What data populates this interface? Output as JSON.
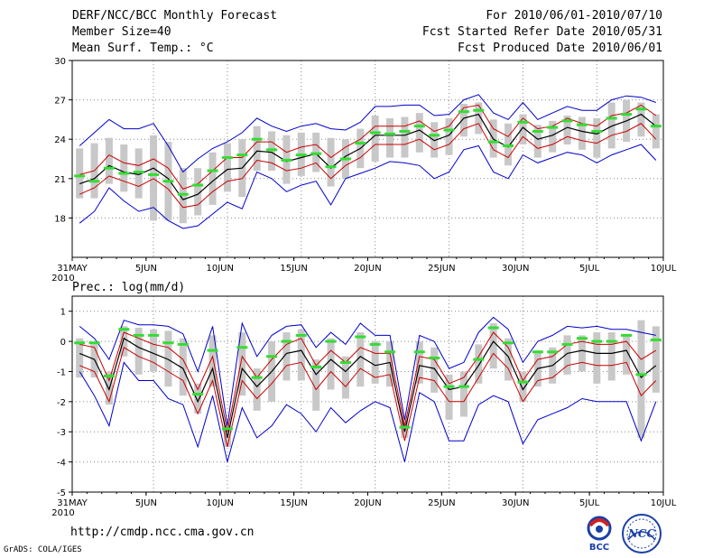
{
  "header": {
    "title": "DERF/NCC/BCC Monthly Forecast",
    "member_size": "Member Size=40",
    "variable": "Mean Surf. Temp.: °C",
    "period": "For 2010/06/01-2010/07/10",
    "started": "Fcst Started Refer Date 2010/05/31",
    "produced": "Fcst Produced Date 2010/06/01"
  },
  "panel2_label": "Prec.: log(mm/d)",
  "footer": {
    "url": "http://cmdp.ncc.cma.gov.cn",
    "credit": "GrADS: COLA/IGES"
  },
  "logos": {
    "bcc": "BCC",
    "ncc": "NCC"
  },
  "colors": {
    "envelope": "#0000cc",
    "spread": "#cc0000",
    "mean": "#000000",
    "box": "#c8c8c8",
    "obs": "#33dd33"
  },
  "chart_data": [
    {
      "type": "line",
      "title": "Mean Surf. Temp.: °C",
      "x_tick_labels": [
        "31MAY",
        "5JUN",
        "10JUN",
        "15JUN",
        "20JUN",
        "25JUN",
        "30JUN",
        "5JUL",
        "10JUL"
      ],
      "x_year_label": "2010",
      "ylim": [
        15,
        30
      ],
      "yticks": [
        18,
        21,
        24,
        27,
        30
      ],
      "days": [
        1,
        2,
        3,
        4,
        5,
        6,
        7,
        8,
        9,
        10,
        11,
        12,
        13,
        14,
        15,
        16,
        17,
        18,
        19,
        20,
        21,
        22,
        23,
        24,
        25,
        26,
        27,
        28,
        29,
        30,
        31,
        32,
        33,
        34,
        35,
        36,
        37,
        38,
        39,
        40
      ],
      "series": [
        {
          "name": "max",
          "values": [
            23.5,
            24.5,
            25.5,
            24.8,
            24.8,
            25.2,
            23.5,
            21.5,
            22.5,
            23.3,
            23.8,
            24.5,
            25.6,
            25.0,
            24.6,
            25.0,
            25.2,
            24.8,
            24.7,
            25.3,
            26.5,
            26.5,
            26.6,
            26.6,
            25.8,
            25.9,
            27.0,
            27.4,
            26.0,
            25.5,
            26.8,
            25.5,
            26.0,
            26.5,
            26.2,
            26.2,
            27.0,
            27.3,
            27.2,
            26.8
          ]
        },
        {
          "name": "spread_upper",
          "values": [
            21.3,
            21.6,
            22.8,
            22.2,
            22.0,
            22.5,
            21.8,
            20.2,
            20.6,
            21.6,
            22.6,
            22.6,
            23.8,
            23.8,
            23.0,
            23.4,
            23.6,
            22.6,
            23.4,
            24.0,
            25.0,
            25.0,
            25.0,
            25.4,
            24.6,
            25.0,
            26.4,
            26.6,
            24.8,
            24.2,
            25.6,
            24.8,
            25.0,
            25.6,
            25.2,
            25.0,
            25.8,
            26.0,
            26.6,
            25.8
          ]
        },
        {
          "name": "mean",
          "values": [
            20.6,
            21.0,
            22.0,
            21.5,
            21.3,
            21.8,
            21.0,
            19.4,
            19.8,
            20.8,
            21.7,
            21.8,
            23.1,
            23.0,
            22.3,
            22.6,
            22.9,
            21.8,
            22.7,
            23.3,
            24.3,
            24.3,
            24.3,
            24.7,
            23.9,
            24.3,
            25.6,
            25.9,
            24.0,
            23.4,
            24.9,
            24.0,
            24.3,
            24.9,
            24.6,
            24.4,
            25.0,
            25.4,
            25.9,
            25.0
          ]
        },
        {
          "name": "spread_lower",
          "values": [
            19.8,
            20.3,
            21.2,
            20.8,
            20.4,
            21.0,
            20.2,
            18.8,
            19.0,
            20.0,
            20.8,
            21.0,
            22.4,
            22.2,
            21.6,
            21.8,
            22.2,
            21.0,
            22.0,
            22.6,
            23.6,
            23.6,
            23.6,
            24.0,
            23.2,
            23.6,
            24.8,
            25.2,
            23.2,
            22.6,
            24.2,
            23.3,
            23.6,
            24.2,
            23.9,
            23.7,
            24.3,
            24.6,
            25.2,
            24.0
          ]
        },
        {
          "name": "min",
          "values": [
            17.6,
            18.5,
            20.3,
            19.3,
            18.5,
            18.8,
            17.8,
            17.2,
            17.4,
            18.3,
            19.2,
            18.7,
            21.5,
            21.0,
            20.0,
            20.5,
            20.8,
            19.0,
            21.0,
            21.4,
            21.8,
            22.3,
            22.2,
            22.0,
            21.0,
            21.5,
            23.2,
            23.5,
            21.5,
            21.0,
            22.8,
            22.2,
            22.6,
            23.0,
            22.8,
            22.2,
            22.8,
            23.2,
            23.6,
            22.4
          ]
        },
        {
          "name": "box_top",
          "values": [
            23.3,
            23.7,
            24.1,
            23.6,
            23.3,
            24.3,
            23.8,
            21.8,
            21.8,
            23.0,
            23.7,
            24.0,
            25.0,
            24.6,
            24.3,
            24.5,
            24.5,
            24.1,
            24.0,
            24.8,
            25.8,
            25.6,
            25.7,
            26.0,
            25.3,
            25.6,
            26.7,
            26.8,
            25.5,
            25.2,
            25.9,
            25.1,
            25.4,
            25.8,
            25.7,
            25.6,
            26.8,
            27.0,
            26.8,
            25.9
          ]
        },
        {
          "name": "box_bottom",
          "values": [
            19.5,
            19.5,
            20.6,
            20.0,
            19.5,
            17.8,
            17.8,
            17.6,
            18.2,
            19.0,
            20.0,
            19.6,
            21.6,
            21.6,
            20.6,
            21.2,
            21.5,
            20.4,
            21.0,
            21.8,
            22.3,
            22.6,
            22.6,
            23.0,
            22.6,
            22.8,
            24.2,
            24.4,
            22.6,
            22.0,
            23.6,
            22.6,
            23.0,
            23.6,
            23.2,
            22.6,
            23.3,
            23.8,
            24.2,
            23.3
          ]
        },
        {
          "name": "observed",
          "values": [
            21.2,
            20.8,
            21.8,
            21.4,
            21.5,
            21.3,
            20.8,
            19.8,
            20.5,
            21.6,
            22.6,
            22.8,
            24.0,
            23.2,
            22.4,
            22.8,
            22.9,
            21.9,
            22.5,
            23.7,
            24.5,
            24.4,
            24.6,
            25.0,
            24.3,
            24.7,
            26.1,
            26.2,
            23.8,
            23.5,
            25.3,
            24.6,
            24.9,
            25.4,
            25.1,
            24.6,
            25.6,
            25.9,
            26.3,
            25.0
          ]
        }
      ]
    },
    {
      "type": "line",
      "title": "Prec.: log(mm/d)",
      "x_tick_labels": [
        "31MAY",
        "5JUN",
        "10JUN",
        "15JUN",
        "20JUN",
        "25JUN",
        "30JUN",
        "5JUL",
        "10JUL"
      ],
      "x_year_label": "2010",
      "ylim": [
        -5,
        1.5
      ],
      "yticks": [
        -5,
        -4,
        -3,
        -2,
        -1,
        0,
        1
      ],
      "days": [
        1,
        2,
        3,
        4,
        5,
        6,
        7,
        8,
        9,
        10,
        11,
        12,
        13,
        14,
        15,
        16,
        17,
        18,
        19,
        20,
        21,
        22,
        23,
        24,
        25,
        26,
        27,
        28,
        29,
        30,
        31,
        32,
        33,
        34,
        35,
        36,
        37,
        38,
        39,
        40
      ],
      "series": [
        {
          "name": "max",
          "values": [
            0.5,
            0.1,
            -0.6,
            0.7,
            0.55,
            0.55,
            0.5,
            0.25,
            -1.0,
            0.5,
            -2.8,
            0.6,
            -0.5,
            0.2,
            0.5,
            0.55,
            -0.2,
            0.3,
            -0.1,
            0.6,
            0.2,
            0.2,
            -2.6,
            0.2,
            0.0,
            -0.9,
            -0.7,
            0.3,
            0.8,
            0.4,
            -0.7,
            0.0,
            0.2,
            0.5,
            0.45,
            0.5,
            0.4,
            0.4,
            0.3,
            0.2
          ]
        },
        {
          "name": "spread_upper",
          "values": [
            -0.1,
            -0.2,
            -1.3,
            0.3,
            0.1,
            -0.1,
            -0.2,
            -0.6,
            -1.6,
            -0.5,
            -3.0,
            -0.5,
            -1.2,
            -0.6,
            -0.1,
            0.1,
            -0.8,
            -0.3,
            -0.7,
            -0.2,
            -0.4,
            -0.4,
            -2.8,
            -0.5,
            -0.6,
            -1.4,
            -1.2,
            -0.5,
            0.3,
            -0.2,
            -1.3,
            -0.6,
            -0.5,
            -0.1,
            0.0,
            -0.1,
            -0.1,
            0.0,
            -0.6,
            -0.3
          ]
        },
        {
          "name": "mean",
          "values": [
            -0.4,
            -0.6,
            -1.6,
            0.1,
            -0.2,
            -0.4,
            -0.6,
            -0.9,
            -2.0,
            -0.9,
            -3.2,
            -0.9,
            -1.5,
            -1.0,
            -0.4,
            -0.3,
            -1.1,
            -0.6,
            -1.0,
            -0.5,
            -0.8,
            -0.7,
            -3.0,
            -0.8,
            -0.9,
            -1.6,
            -1.5,
            -0.8,
            0.0,
            -0.5,
            -1.6,
            -0.9,
            -0.8,
            -0.4,
            -0.3,
            -0.4,
            -0.4,
            -0.3,
            -1.2,
            -0.8
          ]
        },
        {
          "name": "spread_lower",
          "values": [
            -0.8,
            -1.0,
            -2.0,
            -0.2,
            -0.5,
            -0.7,
            -1.0,
            -1.3,
            -2.4,
            -1.3,
            -3.5,
            -1.3,
            -1.9,
            -1.4,
            -0.8,
            -0.7,
            -1.6,
            -1.0,
            -1.5,
            -0.9,
            -1.2,
            -1.1,
            -3.3,
            -1.2,
            -1.3,
            -2.0,
            -2.0,
            -1.2,
            -0.4,
            -0.9,
            -2.0,
            -1.3,
            -1.2,
            -0.8,
            -0.7,
            -0.8,
            -0.8,
            -0.7,
            -1.8,
            -1.3
          ]
        },
        {
          "name": "min",
          "values": [
            -1.0,
            -1.8,
            -2.8,
            -0.7,
            -1.3,
            -1.3,
            -1.9,
            -2.1,
            -3.5,
            -1.8,
            -4.0,
            -2.2,
            -3.2,
            -2.8,
            -2.1,
            -2.4,
            -3.0,
            -2.2,
            -2.7,
            -2.3,
            -2.0,
            -2.2,
            -4.0,
            -1.7,
            -2.0,
            -3.3,
            -3.3,
            -2.1,
            -1.8,
            -2.0,
            -3.4,
            -2.6,
            -2.4,
            -2.2,
            -1.9,
            -2.0,
            -2.0,
            -2.0,
            -3.3,
            -2.0
          ]
        },
        {
          "name": "box_top",
          "values": [
            0.1,
            -0.1,
            -1.0,
            0.5,
            0.45,
            0.4,
            0.35,
            0.1,
            -1.4,
            0.2,
            -2.8,
            0.3,
            -0.9,
            0.0,
            0.3,
            0.4,
            -0.6,
            0.1,
            -0.5,
            0.3,
            0.0,
            0.0,
            -2.6,
            0.0,
            -0.2,
            -1.1,
            -1.0,
            -0.1,
            0.6,
            0.1,
            -1.0,
            -0.3,
            -0.2,
            0.2,
            0.2,
            0.3,
            0.3,
            0.2,
            0.7,
            0.5
          ]
        },
        {
          "name": "box_bottom",
          "values": [
            -1.2,
            -1.2,
            -2.1,
            -0.5,
            -1.1,
            -1.0,
            -1.5,
            -1.8,
            -2.4,
            -1.5,
            -3.5,
            -1.8,
            -2.3,
            -2.0,
            -1.3,
            -1.3,
            -2.3,
            -1.6,
            -1.9,
            -1.5,
            -1.4,
            -1.5,
            -3.2,
            -1.4,
            -1.7,
            -2.6,
            -2.5,
            -1.4,
            -0.9,
            -1.3,
            -2.0,
            -1.5,
            -1.4,
            -1.1,
            -1.0,
            -1.4,
            -1.3,
            -1.1,
            -3.2,
            -1.7
          ]
        },
        {
          "name": "observed",
          "values": [
            -0.05,
            -0.05,
            -1.15,
            0.4,
            0.2,
            0.2,
            -0.05,
            -0.1,
            -1.75,
            -0.3,
            -2.9,
            -0.2,
            -1.2,
            -0.5,
            0.0,
            0.2,
            -0.85,
            0.0,
            -0.7,
            0.15,
            -0.1,
            -0.35,
            -2.85,
            -0.35,
            -0.55,
            -1.5,
            -1.5,
            -0.6,
            0.45,
            -0.05,
            -1.35,
            -0.35,
            -0.35,
            -0.1,
            0.1,
            0.0,
            0.0,
            0.2,
            -1.1,
            0.05
          ]
        }
      ]
    }
  ]
}
